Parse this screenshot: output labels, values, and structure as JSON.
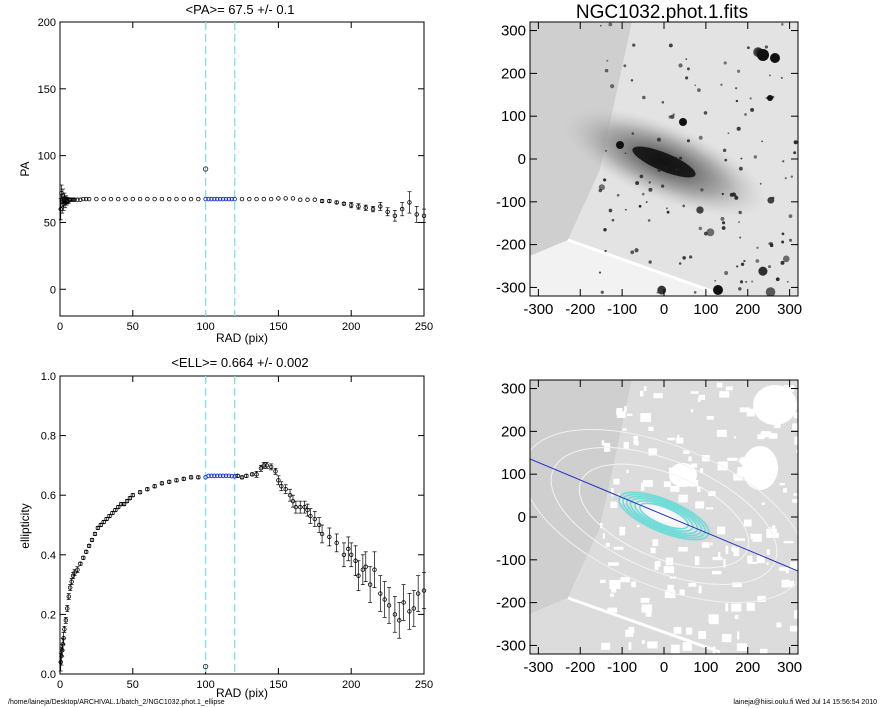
{
  "chart_data": [
    {
      "type": "scatter",
      "title": "<PA>=  67.5 +/-   0.1",
      "xlabel": "RAD (pix)",
      "ylabel": "PA",
      "xlim": [
        0,
        250
      ],
      "ylim": [
        -20,
        200
      ],
      "xticks": [
        0,
        50,
        100,
        150,
        200,
        250
      ],
      "yticks": [
        0,
        50,
        100,
        150,
        200
      ],
      "fit_range": [
        100,
        120
      ],
      "outlier": {
        "x": 100,
        "y": 90
      },
      "fit_points": {
        "x": [
          100,
          102,
          104,
          106,
          108,
          110,
          112,
          114,
          116,
          118,
          120
        ],
        "y": [
          67.5,
          67.5,
          67.5,
          67.5,
          67.5,
          67.5,
          67.5,
          67.5,
          67.5,
          67.5,
          67.5
        ]
      },
      "series": [
        {
          "x": [
            0.5,
            1,
            1.5,
            2,
            2.5,
            3,
            3.5,
            4,
            4.5,
            5,
            6,
            7,
            8,
            9,
            10,
            12,
            14,
            16,
            18,
            20,
            25,
            30,
            35,
            40,
            45,
            50,
            55,
            60,
            65,
            70,
            75,
            80,
            85,
            90,
            95,
            125,
            130,
            135,
            140,
            145,
            150,
            155,
            160,
            165,
            170,
            175,
            180,
            185,
            190,
            195,
            200,
            205,
            210,
            215,
            220,
            225,
            230,
            235,
            240,
            245,
            250
          ],
          "y": [
            60,
            72,
            63,
            70,
            64,
            68,
            65,
            67,
            66,
            66,
            66.5,
            67,
            67,
            67,
            67,
            67,
            67,
            67.5,
            67.5,
            67.5,
            67.5,
            67.5,
            67.5,
            67.5,
            67.5,
            67.5,
            67.5,
            67.5,
            67.5,
            67.5,
            67.5,
            67.5,
            67.5,
            67.5,
            67.5,
            67.5,
            67.5,
            67.5,
            67.5,
            67.5,
            68,
            68,
            68,
            67,
            67,
            67,
            66,
            66,
            65,
            64,
            63,
            62,
            61,
            60,
            62,
            58,
            55,
            60,
            65,
            56,
            55
          ],
          "err": [
            8,
            6,
            6,
            5,
            5,
            4,
            4,
            3,
            3,
            2,
            2,
            1,
            1,
            1,
            1,
            0,
            0,
            0,
            0,
            0,
            0,
            0,
            0,
            0,
            0,
            0,
            0,
            0,
            0,
            0,
            0,
            0,
            0,
            0,
            0,
            0,
            0,
            0,
            0,
            0,
            0,
            0,
            0,
            0,
            0,
            0,
            1,
            1,
            1,
            1,
            2,
            2,
            2,
            2,
            3,
            3,
            4,
            5,
            8,
            6,
            5
          ]
        }
      ]
    },
    {
      "type": "scatter",
      "title": "<ELL>= 0.664 +/-  0.002",
      "xlabel": "RAD (pix)",
      "ylabel": "ellipticity",
      "xlim": [
        0,
        250
      ],
      "ylim": [
        0,
        1
      ],
      "xticks": [
        0,
        50,
        100,
        150,
        200,
        250
      ],
      "yticks": [
        0.0,
        0.2,
        0.4,
        0.6,
        0.8,
        1.0
      ],
      "fit_range": [
        100,
        120
      ],
      "outlier": {
        "x": 100,
        "y": 0.025
      },
      "fit_points": {
        "x": [
          100,
          102,
          104,
          106,
          108,
          110,
          112,
          114,
          116,
          118,
          120
        ],
        "y": [
          0.66,
          0.665,
          0.665,
          0.665,
          0.665,
          0.665,
          0.665,
          0.665,
          0.665,
          0.664,
          0.663
        ]
      },
      "series": [
        {
          "x": [
            0.5,
            1,
            1.5,
            2,
            2.5,
            3,
            4,
            5,
            6,
            7,
            8,
            9,
            10,
            12,
            14,
            16,
            18,
            20,
            22,
            24,
            26,
            28,
            30,
            32,
            34,
            36,
            38,
            40,
            42,
            44,
            46,
            48,
            50,
            55,
            60,
            65,
            70,
            75,
            80,
            85,
            90,
            95,
            122,
            125,
            128,
            132,
            135,
            138,
            140,
            142,
            145,
            148,
            150,
            152,
            155,
            158,
            160,
            162,
            165,
            168,
            170,
            172,
            175,
            178,
            180,
            185,
            190,
            195,
            198,
            200,
            203,
            205,
            208,
            210,
            213,
            216,
            220,
            223,
            226,
            230,
            233,
            236,
            240,
            243,
            246,
            250
          ],
          "y": [
            0.04,
            0.06,
            0.08,
            0.1,
            0.12,
            0.15,
            0.18,
            0.22,
            0.26,
            0.29,
            0.31,
            0.33,
            0.34,
            0.35,
            0.37,
            0.39,
            0.41,
            0.43,
            0.45,
            0.47,
            0.49,
            0.5,
            0.51,
            0.52,
            0.53,
            0.54,
            0.55,
            0.56,
            0.57,
            0.57,
            0.58,
            0.59,
            0.6,
            0.61,
            0.62,
            0.63,
            0.64,
            0.645,
            0.65,
            0.655,
            0.66,
            0.66,
            0.665,
            0.66,
            0.665,
            0.67,
            0.67,
            0.69,
            0.7,
            0.7,
            0.695,
            0.68,
            0.65,
            0.63,
            0.62,
            0.6,
            0.58,
            0.56,
            0.56,
            0.56,
            0.55,
            0.53,
            0.52,
            0.5,
            0.47,
            0.46,
            0.44,
            0.4,
            0.42,
            0.4,
            0.38,
            0.33,
            0.35,
            0.36,
            0.3,
            0.35,
            0.27,
            0.25,
            0.23,
            0.2,
            0.18,
            0.24,
            0.21,
            0.22,
            0.27,
            0.28
          ],
          "err": [
            0.03,
            0.03,
            0.02,
            0.02,
            0.02,
            0.01,
            0.01,
            0.01,
            0.01,
            0.01,
            0.01,
            0.01,
            0.01,
            0.01,
            0.005,
            0.005,
            0.005,
            0.005,
            0.005,
            0.005,
            0.005,
            0.005,
            0.005,
            0.005,
            0.005,
            0.005,
            0.005,
            0.005,
            0.005,
            0.005,
            0.005,
            0.005,
            0.005,
            0.005,
            0.005,
            0.005,
            0.005,
            0.005,
            0.005,
            0.005,
            0.005,
            0.005,
            0.005,
            0.005,
            0.005,
            0.005,
            0.01,
            0.01,
            0.01,
            0.01,
            0.01,
            0.01,
            0.015,
            0.015,
            0.015,
            0.02,
            0.02,
            0.02,
            0.02,
            0.02,
            0.02,
            0.025,
            0.025,
            0.025,
            0.03,
            0.03,
            0.03,
            0.04,
            0.04,
            0.04,
            0.05,
            0.05,
            0.05,
            0.05,
            0.06,
            0.06,
            0.06,
            0.06,
            0.06,
            0.06,
            0.06,
            0.06,
            0.06,
            0.06,
            0.06,
            0.06
          ]
        }
      ]
    },
    {
      "type": "heatmap",
      "title": "NGC1032.phot.1.fits",
      "xlim": [
        -320,
        320
      ],
      "ylim": [
        -320,
        320
      ],
      "xticks": [
        -300,
        -200,
        -100,
        0,
        100,
        200,
        300
      ],
      "yticks": [
        300,
        200,
        100,
        0,
        -100,
        -200,
        -300
      ]
    },
    {
      "type": "heatmap",
      "title": "",
      "xlim": [
        -320,
        320
      ],
      "ylim": [
        -320,
        320
      ],
      "xticks": [
        -300,
        -200,
        -100,
        0,
        100,
        200,
        300
      ],
      "yticks": [
        300,
        200,
        100,
        0,
        -100,
        -200,
        -300
      ],
      "major_axis_pa_deg": 67.5,
      "ellipticity": 0.664
    }
  ],
  "footer": {
    "path": "/home/laineja/Desktop/ARCHIVAL.1/batch_2/NGC1032.phot.1_ellipse",
    "user_date": "laineja@hiisi.oulu.fi  Wed Jul 14 15:56:54 2010"
  },
  "colors": {
    "axis": "#000000",
    "points": "#000000",
    "fit_points": "#1a2fcc",
    "fit_range_lines": "#7fe3e0",
    "major_axis_line": "#2030c8",
    "ellipse_fit": "#6fdcd8",
    "image_background": "#cfcfcf"
  }
}
